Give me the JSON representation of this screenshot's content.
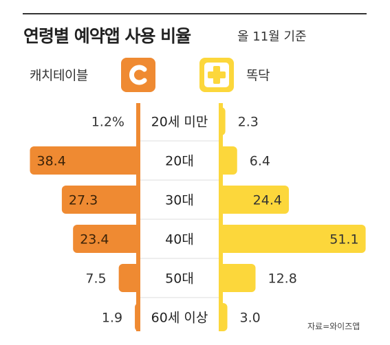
{
  "header": {
    "title": "연령별 예약앱 사용 비율",
    "subtitle": "올 11월 기준"
  },
  "brands": {
    "left": {
      "name": "캐치테이블",
      "color": "#ef8a32",
      "icon": "c-letter-logo-icon"
    },
    "right": {
      "name": "똑닥",
      "color": "#fcd73b",
      "icon": "medical-cross-logo-icon"
    }
  },
  "chart_data": {
    "type": "bar",
    "categories": [
      "20세 미만",
      "20대",
      "30대",
      "40대",
      "50대",
      "60세 이상"
    ],
    "series": [
      {
        "name": "캐치테이블",
        "values": [
          1.2,
          38.4,
          27.3,
          23.4,
          7.5,
          1.9
        ],
        "labels": [
          "1.2%",
          "38.4",
          "27.3",
          "23.4",
          "7.5",
          "1.9"
        ]
      },
      {
        "name": "똑닥",
        "values": [
          2.3,
          6.4,
          24.4,
          51.1,
          12.8,
          3.0
        ],
        "labels": [
          "2.3",
          "6.4",
          "24.4",
          "51.1",
          "12.8",
          "3.0"
        ]
      }
    ],
    "unit": "%"
  },
  "source": "자료=와이즈앱"
}
